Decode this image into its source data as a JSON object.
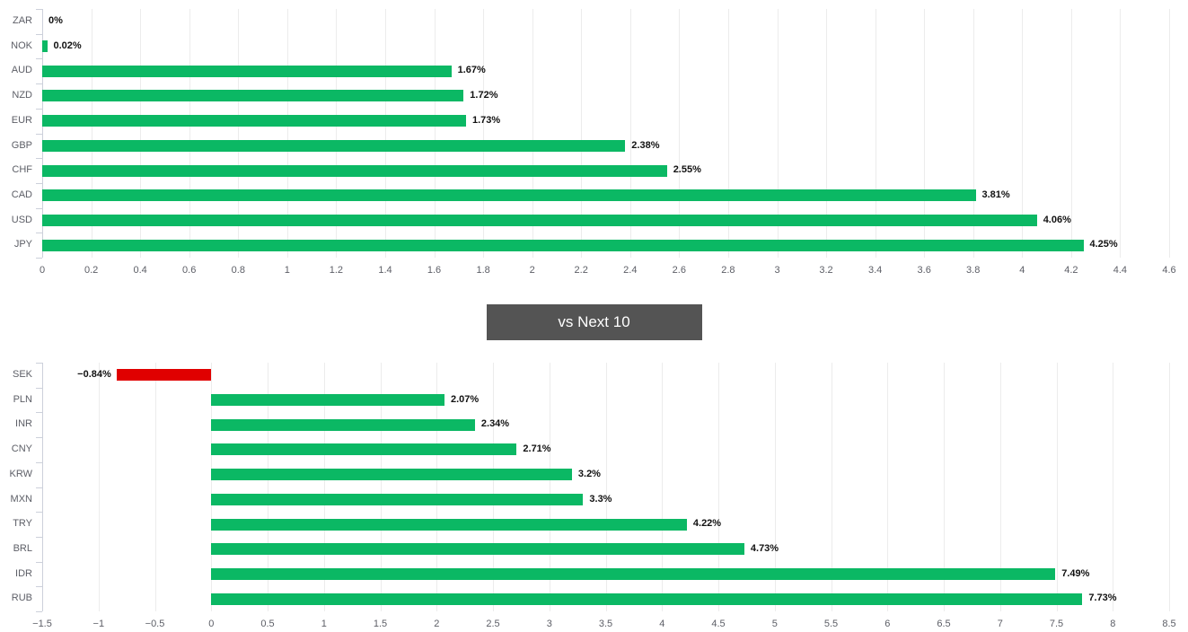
{
  "section_label": {
    "text": "vs Next 10"
  },
  "colors": {
    "positive_bar": "#0bb864",
    "negative_bar": "#e00000",
    "gridline": "#ececec",
    "axis": "#ccd0da",
    "category_label": "#5c5e66",
    "tick_label": "#5c5e66",
    "value_label": "#111111",
    "header_background": "#545454",
    "header_text": "#ffffff"
  },
  "chart_data": [
    {
      "type": "bar",
      "orientation": "horizontal",
      "title": "",
      "xlabel": "",
      "ylabel": "",
      "grid": true,
      "legend": false,
      "categories": [
        "ZAR",
        "NOK",
        "AUD",
        "NZD",
        "EUR",
        "GBP",
        "CHF",
        "CAD",
        "USD",
        "JPY"
      ],
      "values": [
        0,
        0.02,
        1.67,
        1.72,
        1.73,
        2.38,
        2.55,
        3.81,
        4.06,
        4.25
      ],
      "value_labels": [
        "0%",
        "0.02%",
        "1.67%",
        "1.72%",
        "1.73%",
        "2.38%",
        "2.55%",
        "3.81%",
        "4.06%",
        "4.25%"
      ],
      "xlim": [
        0,
        4.6
      ],
      "x_ticks": [
        0,
        0.2,
        0.4,
        0.6,
        0.8,
        1,
        1.2,
        1.4,
        1.6,
        1.8,
        2,
        2.2,
        2.4,
        2.6,
        2.8,
        3,
        3.2,
        3.4,
        3.6,
        3.8,
        4,
        4.2,
        4.4,
        4.6
      ],
      "x_tick_labels": [
        "0",
        "0.2",
        "0.4",
        "0.6",
        "0.8",
        "1",
        "1.2",
        "1.4",
        "1.6",
        "1.8",
        "2",
        "2.2",
        "2.4",
        "2.6",
        "2.8",
        "3",
        "3.2",
        "3.4",
        "3.6",
        "3.8",
        "4",
        "4.2",
        "4.4",
        "4.6"
      ]
    },
    {
      "type": "bar",
      "orientation": "horizontal",
      "title": "vs Next 10",
      "xlabel": "",
      "ylabel": "",
      "grid": true,
      "legend": false,
      "categories": [
        "SEK",
        "PLN",
        "INR",
        "CNY",
        "KRW",
        "MXN",
        "TRY",
        "BRL",
        "IDR",
        "RUB"
      ],
      "values": [
        -0.84,
        2.07,
        2.34,
        2.71,
        3.2,
        3.3,
        4.22,
        4.73,
        7.49,
        7.73
      ],
      "value_labels": [
        "−0.84%",
        "2.07%",
        "2.34%",
        "2.71%",
        "3.2%",
        "3.3%",
        "4.22%",
        "4.73%",
        "7.49%",
        "7.73%"
      ],
      "xlim": [
        -1.5,
        8.5
      ],
      "x_ticks": [
        -1.5,
        -1,
        -0.5,
        0,
        0.5,
        1,
        1.5,
        2,
        2.5,
        3,
        3.5,
        4,
        4.5,
        5,
        5.5,
        6,
        6.5,
        7,
        7.5,
        8,
        8.5
      ],
      "x_tick_labels": [
        "−1.5",
        "−1",
        "−0.5",
        "0",
        "0.5",
        "1",
        "1.5",
        "2",
        "2.5",
        "3",
        "3.5",
        "4",
        "4.5",
        "5",
        "5.5",
        "6",
        "6.5",
        "7",
        "7.5",
        "8",
        "8.5"
      ]
    }
  ]
}
